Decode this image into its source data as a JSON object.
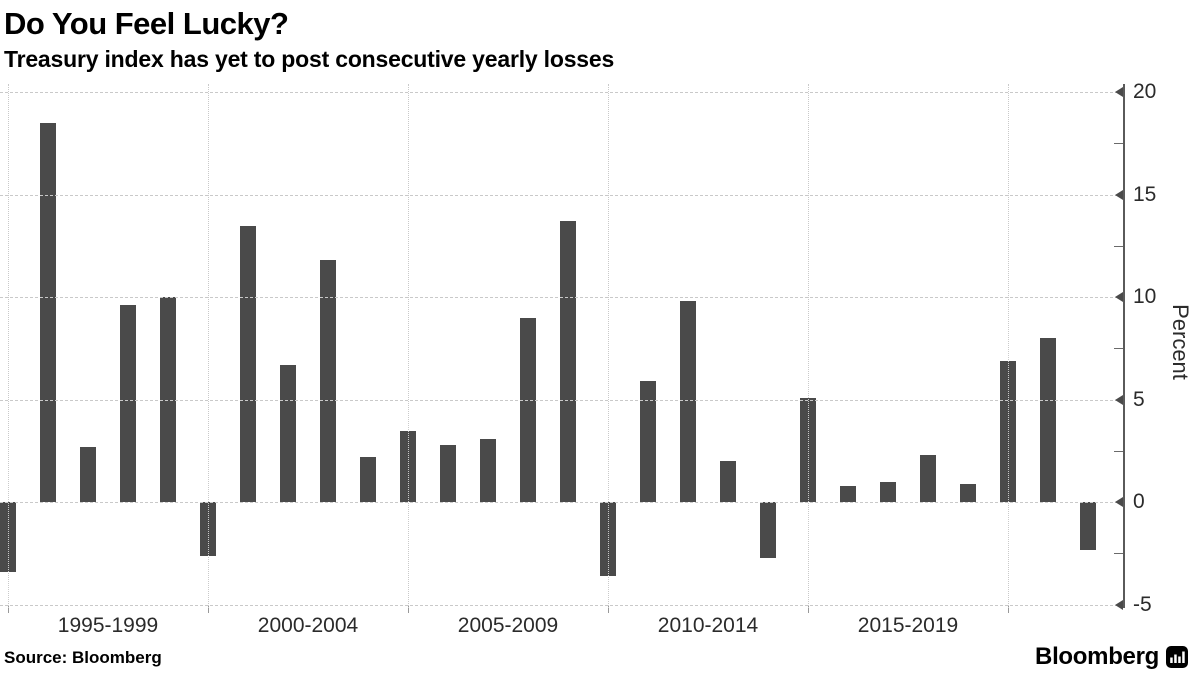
{
  "header": {
    "title": "Do You Feel Lucky?",
    "subtitle": "Treasury index has yet to post consecutive yearly losses"
  },
  "chart_data": {
    "type": "bar",
    "title": "Do You Feel Lucky?",
    "subtitle": "Treasury index has yet to post consecutive yearly losses",
    "ylabel": "Percent",
    "xlabel": "",
    "ylim": [
      -5.15,
      20.4
    ],
    "grid": true,
    "legend": "none",
    "y_major_ticks": [
      20,
      15,
      10,
      5,
      0,
      -5
    ],
    "y_minor_ticks": [
      17.5,
      12.5,
      7.5,
      2.5,
      -2.5
    ],
    "years": [
      1994,
      1995,
      1996,
      1997,
      1998,
      1999,
      2000,
      2001,
      2002,
      2003,
      2004,
      2005,
      2006,
      2007,
      2008,
      2009,
      2010,
      2011,
      2012,
      2013,
      2014,
      2015,
      2016,
      2017,
      2018,
      2019,
      2020,
      2021
    ],
    "values": [
      -3.4,
      18.5,
      2.7,
      9.6,
      10.0,
      -2.6,
      13.5,
      6.7,
      11.8,
      2.2,
      3.5,
      2.8,
      3.1,
      9.0,
      13.7,
      -3.6,
      5.9,
      9.8,
      2.0,
      -2.7,
      5.1,
      0.8,
      1.0,
      2.3,
      0.9,
      6.9,
      8.0,
      -2.3
    ],
    "x_gridline_years": [
      1994,
      1999,
      2004,
      2009,
      2014,
      2019
    ],
    "x_group_labels": [
      "1995-1999",
      "2000-2004",
      "2005-2009",
      "2010-2014",
      "2015-2019"
    ],
    "colors": {
      "bar": "#4a4a4a",
      "grid": "#c9c9c9",
      "axis": "#5a5a5a",
      "tick_text": "#2b2b2b"
    }
  },
  "footer": {
    "source": "Source: Bloomberg",
    "brand": "Bloomberg"
  }
}
